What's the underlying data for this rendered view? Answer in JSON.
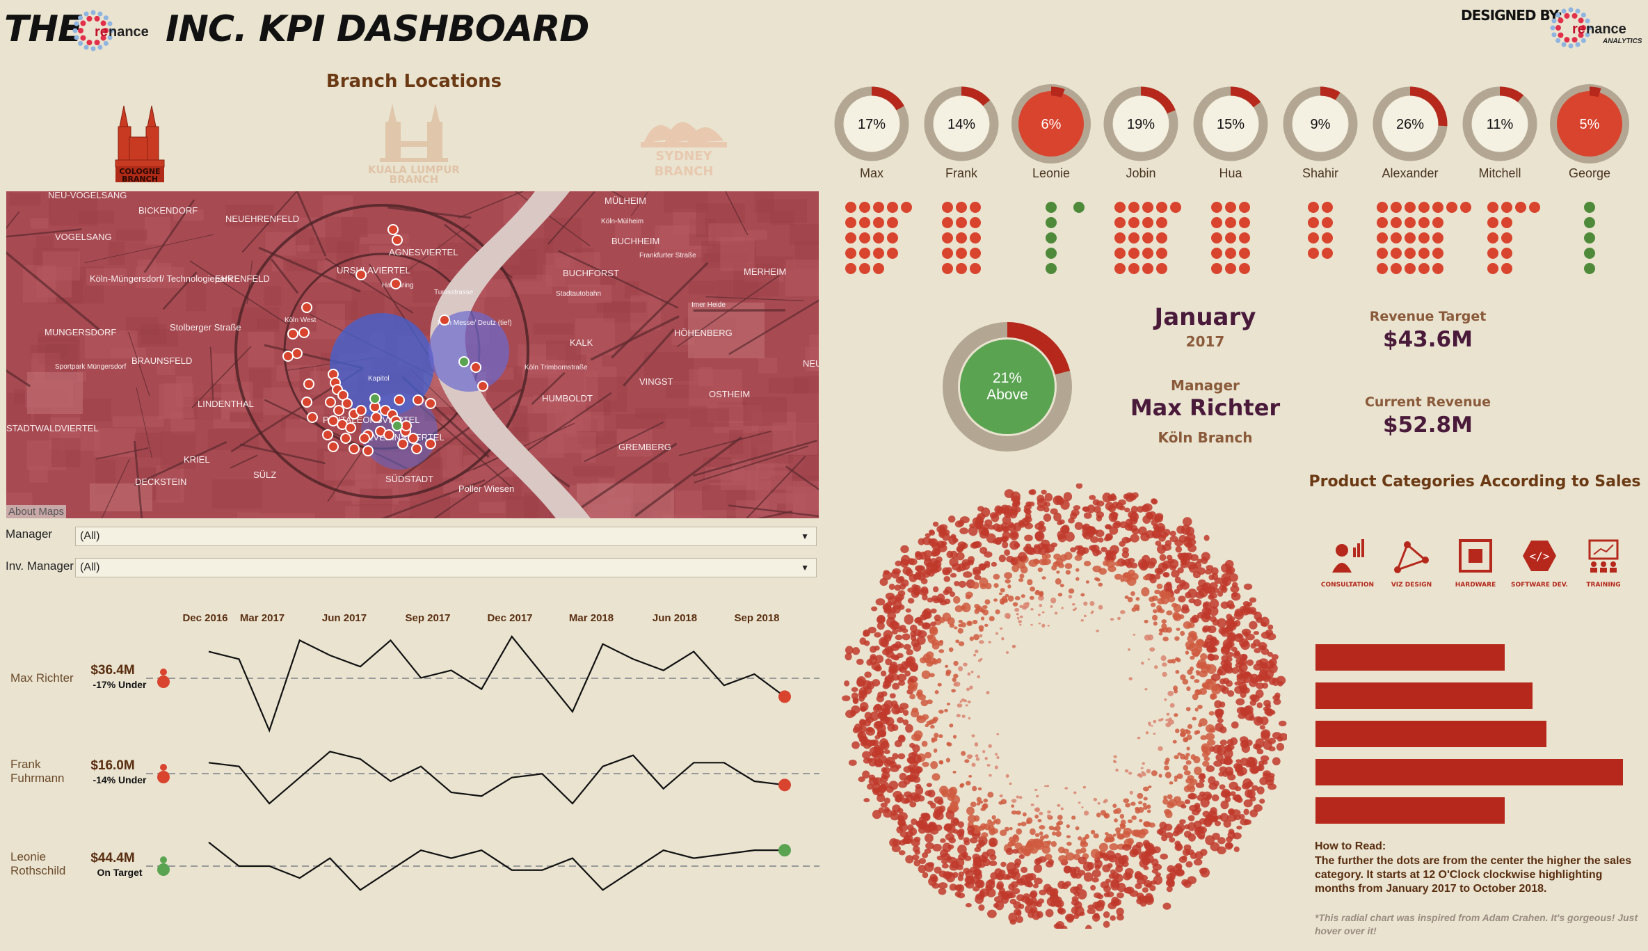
{
  "header": {
    "title_prefix": "THE",
    "title_suffix": "INC. KPI DASHBOARD",
    "logo_text": "nance",
    "logo_re": "re",
    "designed_by": "DESIGNED BY:",
    "designer_logo_text": "nance",
    "designer_logo_re": "re",
    "designer_logo_sub": "ANALYTICS"
  },
  "branches": {
    "title": "Branch Locations",
    "items": [
      {
        "label": "COLOGNE BRANCH",
        "active": true
      },
      {
        "label": "KUALA LUMPUR BRANCH",
        "active": false
      },
      {
        "label": "SYDNEY BRANCH",
        "active": false
      }
    ]
  },
  "map": {
    "about": "About Maps",
    "labels": [
      "NEU-VOGELSANG",
      "BICKENDORF",
      "NEUEHRENFELD",
      "AGNESVIERTEL",
      "MÜLHEIM",
      "BUCHHEIM",
      "VOGELSANG",
      "Köln-Müngersdorf/ Technologiepark",
      "EHRENFELD",
      "URSULAVIERTEL",
      "BUCHFORST",
      "MERHEIM",
      "MUNGERSDORF",
      "Stolberger Straße",
      "KALK",
      "HÖHENBERG",
      "BRAUNSFELD",
      "NEUBRÜ",
      "LINDENTHAL",
      "HUMBOLDT",
      "VINGST",
      "OSTHEIM",
      "STADTWALDVIERTEL",
      "PANTALEONSVIERTEL",
      "SEVERINSVIERTEL",
      "GREMBERG",
      "KRIEL",
      "SÜLZ",
      "DECKSTEIN",
      "SÜDSTADT",
      "Poller Wiesen",
      "Köln-Mülheim",
      "Hansaring",
      "Köln West",
      "Sportpark Müngersdorf",
      "Köln Trimbornstraße",
      "Imer Heide",
      "Stadtautobahn",
      "Tunisstrasse",
      "Frankfurter Straße",
      "Köln Messe/ Deutz (tief)",
      "Kapitol"
    ]
  },
  "filters": {
    "manager_label": "Manager",
    "manager_value": "(All)",
    "inv_manager_label": "Inv. Manager",
    "inv_manager_value": "(All)"
  },
  "rings": [
    {
      "name": "Max",
      "pct": 17,
      "label": "17%",
      "filled": false
    },
    {
      "name": "Frank",
      "pct": 14,
      "label": "14%",
      "filled": false
    },
    {
      "name": "Leonie",
      "pct": 6,
      "label": "6%",
      "filled": true
    },
    {
      "name": "Jobin",
      "pct": 19,
      "label": "19%",
      "filled": false
    },
    {
      "name": "Hua",
      "pct": 15,
      "label": "15%",
      "filled": false
    },
    {
      "name": "Shahir",
      "pct": 9,
      "label": "9%",
      "filled": false
    },
    {
      "name": "Alexander",
      "pct": 26,
      "label": "26%",
      "filled": false
    },
    {
      "name": "Mitchell",
      "pct": 11,
      "label": "11%",
      "filled": false
    },
    {
      "name": "George",
      "pct": 5,
      "label": "5%",
      "filled": true
    }
  ],
  "dot_grids": [
    {
      "name": "Max",
      "cols": 4,
      "rows": 5,
      "count": 19,
      "extra": 1,
      "color": "#d9442e"
    },
    {
      "name": "Frank",
      "cols": 3,
      "rows": 5,
      "count": 15,
      "extra": 0,
      "color": "#d9442e"
    },
    {
      "name": "Leonie",
      "cols": 1,
      "rows": 5,
      "count": 5,
      "extra": 1,
      "color": "#4f8a3a"
    },
    {
      "name": "Jobin",
      "cols": 4,
      "rows": 5,
      "count": 20,
      "extra": 1,
      "color": "#d9442e"
    },
    {
      "name": "Hua",
      "cols": 3,
      "rows": 5,
      "count": 15,
      "extra": 0,
      "color": "#d9442e"
    },
    {
      "name": "Shahir",
      "cols": 2,
      "rows": 5,
      "count": 8,
      "extra": 0,
      "color": "#d9442e"
    },
    {
      "name": "Alexander",
      "cols": 5,
      "rows": 5,
      "count": 25,
      "extra": 2,
      "color": "#d9442e"
    },
    {
      "name": "Mitchell",
      "cols": 2,
      "rows": 5,
      "count": 10,
      "extra": 2,
      "color": "#d9442e"
    },
    {
      "name": "George",
      "cols": 1,
      "rows": 5,
      "count": 5,
      "extra": 0,
      "color": "#4f8a3a"
    }
  ],
  "kpi": {
    "ring_pct": 21,
    "ring_line1": "21%",
    "ring_line2": "Above",
    "month": "January",
    "year": "2017",
    "manager_label": "Manager",
    "manager_name": "Max Richter",
    "branch": "Köln Branch",
    "target_label": "Revenue Target",
    "target_value": "$43.6M",
    "current_label": "Current Revenue",
    "current_value": "$52.8M"
  },
  "products": {
    "title": "Product Categories According to Sales",
    "icons": [
      {
        "label": "CONSULTATION",
        "icon": "consultation-icon"
      },
      {
        "label": "VIZ DESIGN",
        "icon": "viz-design-icon"
      },
      {
        "label": "HARDWARE",
        "icon": "hardware-icon"
      },
      {
        "label": "SOFTWARE DEV.",
        "icon": "software-dev-icon"
      },
      {
        "label": "TRAINING",
        "icon": "training-icon"
      }
    ],
    "bars": [
      {
        "value": 272
      },
      {
        "value": 312
      },
      {
        "value": 332
      },
      {
        "value": 442
      },
      {
        "value": 272
      }
    ],
    "how_title": "How to Read:",
    "how_text": "The further the dots are from the center the higher the sales category. It starts at 12 O'Clock clockwise highlighting months from January 2017 to October 2018.",
    "note": "*This radial chart was inspired from Adam Crahen. It's gorgeous! Just hover over it!"
  },
  "chart_data": {
    "type": "line",
    "x_ticks": [
      "Dec 2016",
      "Mar 2017",
      "Jun 2017",
      "Sep 2017",
      "Dec 2017",
      "Mar 2018",
      "Jun 2018",
      "Sep 2018"
    ],
    "series": [
      {
        "name": "Max Richter",
        "value": "$36.4M",
        "status": "-17% Under",
        "on_target": false,
        "values": [
          61,
          59,
          40,
          64,
          60,
          57,
          64,
          54,
          56,
          51,
          65,
          55,
          45,
          63,
          59,
          56,
          61,
          52,
          55,
          49
        ]
      },
      {
        "name": "Frank Fuhrmann",
        "value": "$16.0M",
        "status": "-14% Under",
        "on_target": false,
        "values": [
          58,
          57,
          47,
          54,
          61,
          59,
          53,
          57,
          50,
          49,
          54,
          55,
          47,
          57,
          60,
          51,
          58,
          58,
          53,
          52
        ]
      },
      {
        "name": "Leonie Rothschild",
        "value": "$44.4M",
        "status": "On Target",
        "on_target": true,
        "values": [
          53,
          47,
          47,
          44,
          49,
          41,
          46,
          51,
          49,
          51,
          46,
          46,
          49,
          41,
          46,
          51,
          49,
          50,
          51,
          51
        ]
      }
    ]
  },
  "colors": {
    "red": "#d9442e",
    "dark_red": "#b5281b",
    "green": "#5aa351",
    "ring_bg": "#b3a793",
    "map_bg": "#a84a52"
  }
}
